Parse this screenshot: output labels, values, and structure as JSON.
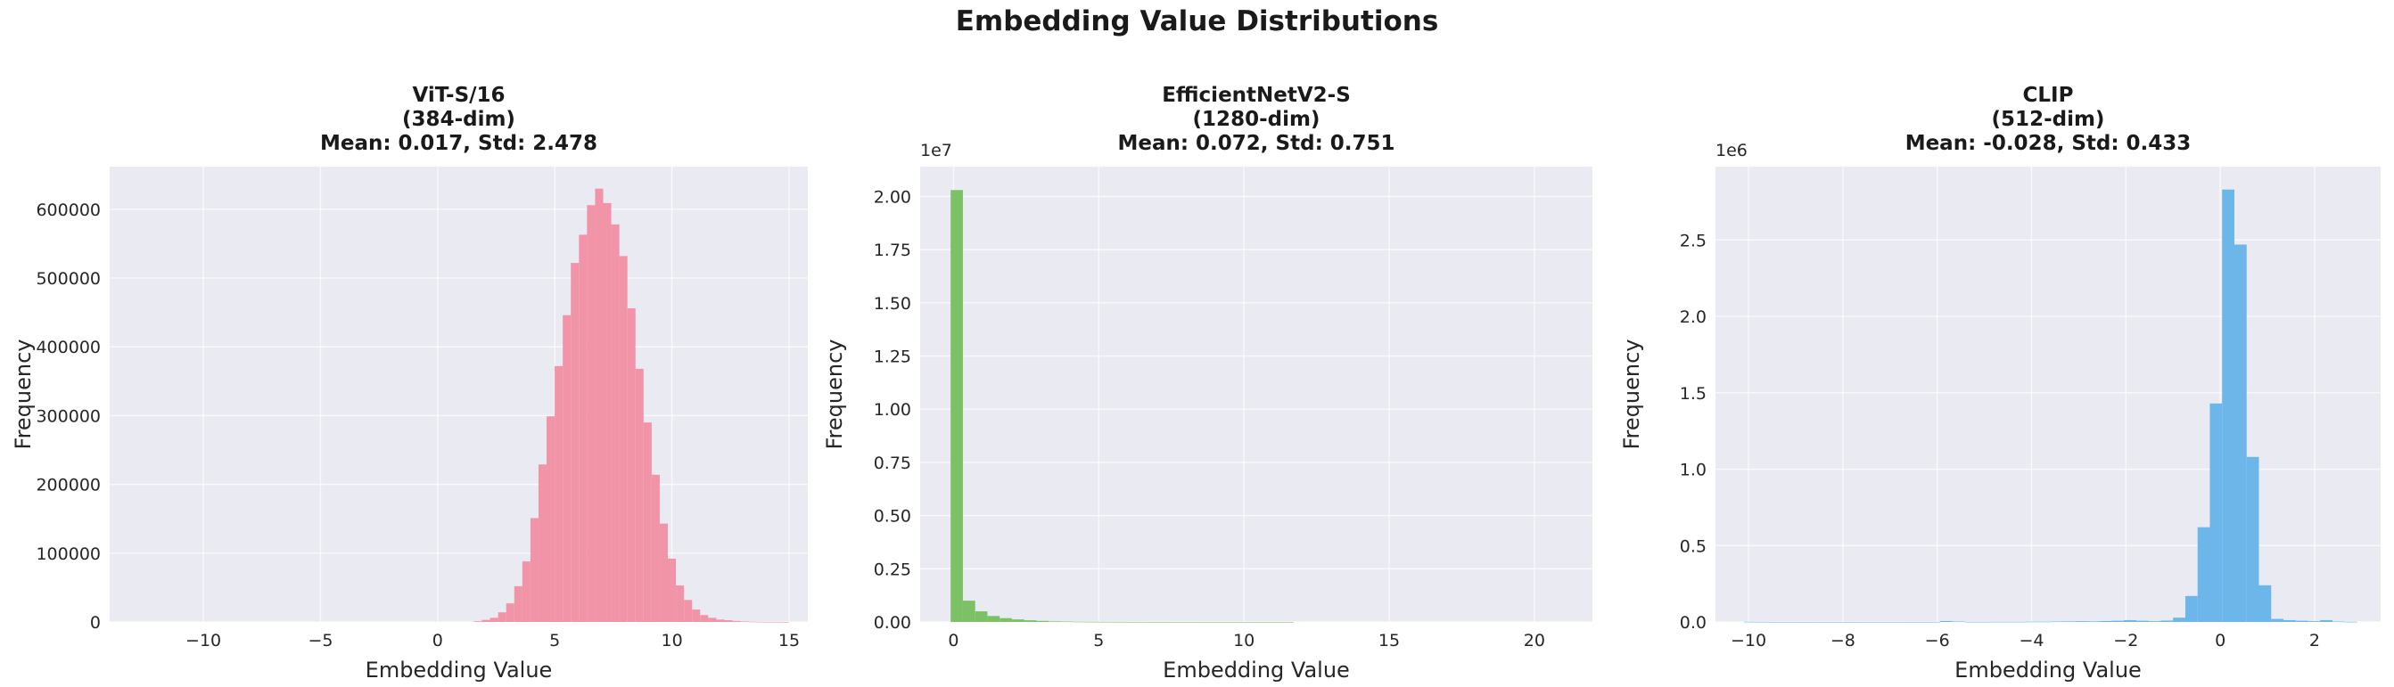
{
  "figure": {
    "title": "Embedding Value Distributions"
  },
  "chart_data": [
    {
      "type": "bar",
      "title": "ViT-S/16\n(384-dim)\nMean: 0.017, Std: 2.478",
      "xlabel": "Embedding Value",
      "ylabel": "Frequency",
      "offset_label": "",
      "color": "#F294A8",
      "xlim": [
        -14.0,
        15.8
      ],
      "ylim": [
        0,
        662000
      ],
      "x_ticks": [
        -10,
        -5,
        0,
        5,
        10,
        15
      ],
      "y_ticks": [
        0,
        100000,
        200000,
        300000,
        400000,
        500000,
        600000
      ],
      "y_tick_labels": [
        "0",
        "100000",
        "200000",
        "300000",
        "400000",
        "500000",
        "600000"
      ],
      "bin_edges": [
        -12.6,
        15.0
      ],
      "values": [
        0,
        0,
        0,
        0,
        0,
        0,
        0,
        0,
        0,
        0,
        0,
        0,
        0,
        0,
        0,
        0,
        0,
        0,
        0,
        0,
        0,
        0,
        0,
        0,
        0,
        0,
        0,
        0,
        0,
        0,
        0,
        0,
        0,
        0,
        0,
        0,
        0,
        0,
        0,
        0,
        0,
        1000,
        3000,
        6000,
        14000,
        27000,
        52000,
        88000,
        151000,
        229000,
        299000,
        372000,
        446000,
        522000,
        563000,
        606000,
        630000,
        609000,
        578000,
        532000,
        456000,
        368000,
        290000,
        214000,
        143000,
        92000,
        53000,
        32000,
        18000,
        10000,
        6000,
        3500,
        2500,
        1500,
        800,
        400,
        200,
        80,
        20,
        5
      ]
    },
    {
      "type": "bar",
      "title": "EfficientNetV2-S\n(1280-dim)\nMean: 0.072, Std: 0.751",
      "xlabel": "Embedding Value",
      "ylabel": "Frequency",
      "offset_label": "1e7",
      "color": "#7DC167",
      "xlim": [
        -1.15,
        22.0
      ],
      "ylim": [
        0,
        21400000
      ],
      "x_ticks": [
        0,
        5,
        10,
        15,
        20
      ],
      "y_ticks": [
        0,
        2500000,
        5000000,
        7500000,
        10000000,
        12500000,
        15000000,
        17500000,
        20000000
      ],
      "y_tick_labels": [
        "0.00",
        "0.25",
        "0.50",
        "0.75",
        "1.00",
        "1.25",
        "1.50",
        "1.75",
        "2.00"
      ],
      "bin_edges": [
        -0.1,
        21.0
      ],
      "values": [
        20300000,
        1000000,
        500000,
        280000,
        180000,
        120000,
        80000,
        50000,
        30000,
        20000,
        12000,
        8000,
        5000,
        3000,
        2000,
        1000,
        500,
        300,
        200,
        100,
        50,
        30,
        20,
        10,
        5,
        3,
        2,
        1,
        0,
        0,
        0,
        0,
        0,
        0,
        0,
        0,
        0,
        0,
        0,
        0,
        0,
        0,
        0,
        0,
        0,
        0,
        0,
        0,
        0,
        0
      ]
    },
    {
      "type": "bar",
      "title": "CLIP\n(512-dim)\nMean: -0.028, Std: 0.433",
      "xlabel": "Embedding Value",
      "ylabel": "Frequency",
      "offset_label": "1e6",
      "color": "#6CB6EA",
      "xlim": [
        -10.7,
        3.4
      ],
      "ylim": [
        0,
        2980000
      ],
      "x_ticks": [
        -10,
        -8,
        -6,
        -4,
        -2,
        0,
        2
      ],
      "y_ticks": [
        0,
        500000,
        1000000,
        1500000,
        2000000,
        2500000
      ],
      "y_tick_labels": [
        "0.0",
        "0.5",
        "1.0",
        "1.5",
        "2.0",
        "2.5"
      ],
      "x_tick_labels": [
        "−10",
        "−8",
        "−6",
        "−4",
        "−2",
        "0",
        "2"
      ],
      "bin_edges": [
        -10.1,
        2.9
      ],
      "values": [
        1000,
        500,
        300,
        200,
        100,
        100,
        100,
        100,
        100,
        100,
        200,
        200,
        200,
        300,
        300,
        300,
        6000,
        3000,
        500,
        500,
        1000,
        1000,
        1000,
        2000,
        2000,
        3000,
        4000,
        5000,
        4000,
        6000,
        8000,
        12000,
        8000,
        5000,
        9000,
        28000,
        170000,
        620000,
        1430000,
        2830000,
        2470000,
        1080000,
        240000,
        20000,
        12000,
        8000,
        5000,
        12000,
        3000,
        1000
      ]
    }
  ]
}
